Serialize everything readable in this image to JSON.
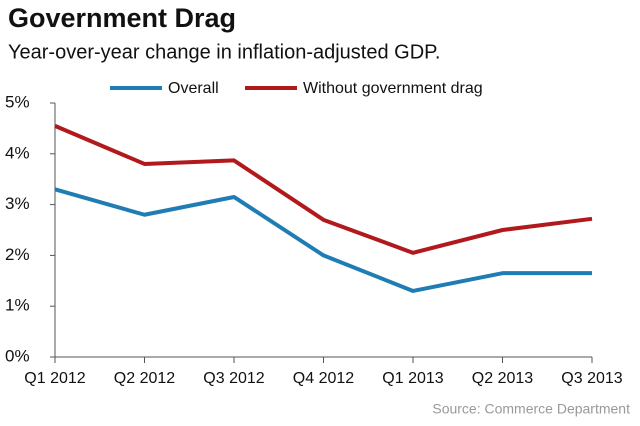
{
  "chart_data": {
    "type": "line",
    "title": "Government Drag",
    "subtitle": "Year-over-year change in inflation-adjusted GDP.",
    "source": "Source: Commerce Department",
    "categories": [
      "Q1 2012",
      "Q2 2012",
      "Q3 2012",
      "Q4 2012",
      "Q1 2013",
      "Q2 2013",
      "Q3 2013"
    ],
    "series": [
      {
        "name": "Overall",
        "color": "#1f7db4",
        "values": [
          3.3,
          2.8,
          3.15,
          2.0,
          1.3,
          1.65,
          1.65
        ]
      },
      {
        "name": "Without government drag",
        "color": "#b2191c",
        "values": [
          4.55,
          3.8,
          3.87,
          2.7,
          2.05,
          2.5,
          2.72
        ]
      }
    ],
    "ylim": [
      0,
      5
    ],
    "yticks": [
      {
        "value": 0,
        "label": "0%"
      },
      {
        "value": 1,
        "label": "1%"
      },
      {
        "value": 2,
        "label": "2%"
      },
      {
        "value": 3,
        "label": "3%"
      },
      {
        "value": 4,
        "label": "4%"
      },
      {
        "value": 5,
        "label": "5%"
      }
    ],
    "grid": false
  }
}
